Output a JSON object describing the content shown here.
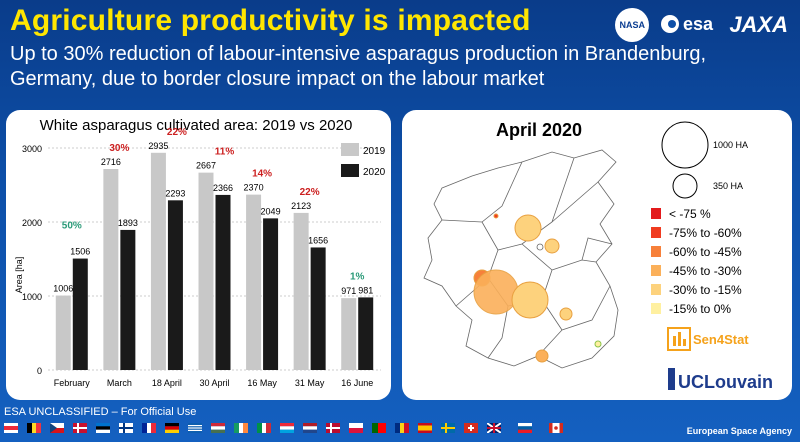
{
  "header": {
    "title": "Agriculture productivity is impacted",
    "subtitle": "Up to 30% reduction of labour-intensive asparagus production in Brandenburg, Germany, due to border closure impact on the labour market",
    "logos": [
      "NASA",
      "esa",
      "JAXA"
    ]
  },
  "chart_data": {
    "type": "bar",
    "title": "White asparagus cultivated area: 2019 vs 2020",
    "ylabel": "Area [ha]",
    "xlabel": "",
    "ylim": [
      0,
      3000
    ],
    "yticks": [
      "0",
      "1000",
      "2000",
      "3000"
    ],
    "categories": [
      "February",
      "March",
      "18 April",
      "30 April",
      "16 May",
      "31 May",
      "16 June"
    ],
    "series": [
      {
        "name": "2019",
        "color": "#c8c8c8",
        "values": [
          1006,
          2716,
          2935,
          2667,
          2370,
          2123,
          971
        ]
      },
      {
        "name": "2020",
        "color": "#1a1a1a",
        "values": [
          1506,
          1893,
          2293,
          2366,
          2049,
          1656,
          981
        ]
      }
    ],
    "value_labels_2019": [
      "1006",
      "2716",
      "2935",
      "2667",
      "2370",
      "2123",
      "971"
    ],
    "value_labels_2020": [
      "1506",
      "1893",
      "2293",
      "2366",
      "2049",
      "1656",
      "981"
    ],
    "change_labels": [
      {
        "text": "50%",
        "color": "#2a9a78"
      },
      {
        "text": "30%",
        "color": "#cc1f1f"
      },
      {
        "text": "22%",
        "color": "#cc1f1f"
      },
      {
        "text": "11%",
        "color": "#cc1f1f"
      },
      {
        "text": "14%",
        "color": "#cc1f1f"
      },
      {
        "text": "22%",
        "color": "#cc1f1f"
      },
      {
        "text": "1%",
        "color": "#2a9a78"
      }
    ],
    "legend": {
      "placement": "top-right"
    }
  },
  "map": {
    "title": "April 2020",
    "size_legend": [
      {
        "label": "1000 HA"
      },
      {
        "label": "350 HA"
      }
    ],
    "color_legend": [
      {
        "label": "< -75 %",
        "color": "#e31a1c"
      },
      {
        "label": "-75% to -60%",
        "color": "#f03b20"
      },
      {
        "label": "-60% to -45%",
        "color": "#f7803a"
      },
      {
        "label": "-45% to -30%",
        "color": "#fbb05a"
      },
      {
        "label": "-30% to -15%",
        "color": "#fdd27d"
      },
      {
        "label": "-15% to 0%",
        "color": "#fff0a0"
      }
    ],
    "partner_logos": [
      "Sen4Stat",
      "UCLouvain"
    ]
  },
  "footer": {
    "classification": "ESA UNCLASSIFIED – For Official Use",
    "agency": "European Space Agency"
  }
}
